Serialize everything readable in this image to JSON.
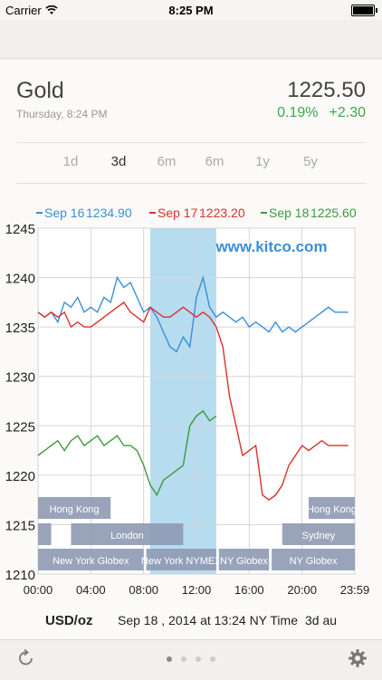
{
  "status_bar": {
    "carrier": "Carrier",
    "time": "8:25 PM"
  },
  "header": {
    "title": "Gold",
    "timestamp": "Thursday, 8:24 PM",
    "price": "1225.50",
    "change_pct": "0.19%",
    "change_abs": "+2.30"
  },
  "colors": {
    "positive": "#3aa64a",
    "sep16": "#3a8fd9",
    "sep17": "#d9312c",
    "sep18": "#3c9a3c",
    "highlight": "#9ed0ea"
  },
  "tabs": [
    {
      "label": "1d",
      "active": false
    },
    {
      "label": "3d",
      "active": true
    },
    {
      "label": "6m",
      "active": false
    },
    {
      "label": "6m",
      "active": false
    },
    {
      "label": "1y",
      "active": false
    },
    {
      "label": "5y",
      "active": false
    }
  ],
  "pager": {
    "pages": 4,
    "current": 0
  },
  "icons": {
    "refresh": "refresh-icon",
    "settings": "gear-icon"
  },
  "chart_data": {
    "type": "line",
    "watermark": "www.kitco.com",
    "legend": [
      {
        "name": "Sep 16",
        "value": "1234.90",
        "color": "#3a8fd9"
      },
      {
        "name": "Sep 17",
        "value": "1223.20",
        "color": "#d9312c"
      },
      {
        "name": "Sep 18",
        "value": "1225.60",
        "color": "#3c9a3c"
      }
    ],
    "ylim": [
      1210,
      1245
    ],
    "y_ticks": [
      "1245",
      "1240",
      "1235",
      "1230",
      "1225",
      "1220",
      "1215",
      "1210"
    ],
    "xlim": [
      0,
      24
    ],
    "x_ticks": [
      "00:00",
      "04:00",
      "08:00",
      "12:00",
      "16:00",
      "20:00",
      "23:59"
    ],
    "x_tick_hours": [
      0,
      4,
      8,
      12,
      16,
      20,
      24
    ],
    "highlight_hours": [
      8.5,
      13.5
    ],
    "footer": {
      "unit": "USD/oz",
      "timestamp": "Sep 18 , 2014 at 13:24 NY Time",
      "period": "3d au"
    },
    "sessions": [
      {
        "label": "Hong Kong",
        "start": 0,
        "end": 5.5,
        "row": 0
      },
      {
        "label": "Hong Kong",
        "start": 20.5,
        "end": 24,
        "row": 0
      },
      {
        "label": "",
        "start": 0,
        "end": 1,
        "row": 1
      },
      {
        "label": "London",
        "start": 2.5,
        "end": 11,
        "row": 1
      },
      {
        "label": "Sydney",
        "start": 18.5,
        "end": 24,
        "row": 1
      },
      {
        "label": "New York Globex",
        "start": 0,
        "end": 8,
        "row": 2
      },
      {
        "label": "New York NYMEX",
        "start": 8.2,
        "end": 13.5,
        "row": 2
      },
      {
        "label": "NY Globex",
        "start": 13.7,
        "end": 17.5,
        "row": 2
      },
      {
        "label": "NY Globex",
        "start": 17.7,
        "end": 24,
        "row": 2
      }
    ],
    "series": [
      {
        "name": "Sep 16",
        "color": "#3a8fd9",
        "x": [
          0,
          0.5,
          1,
          1.5,
          2,
          2.5,
          3,
          3.5,
          4,
          4.5,
          5,
          5.5,
          6,
          6.5,
          7,
          7.5,
          8,
          8.5,
          9,
          9.5,
          10,
          10.5,
          11,
          11.5,
          12,
          12.5,
          13,
          13.5,
          14,
          14.5,
          15,
          15.5,
          16,
          16.5,
          17,
          17.5,
          18,
          18.5,
          19,
          19.5,
          20,
          20.5,
          21,
          21.5,
          22,
          22.5,
          23,
          23.5
        ],
        "values": [
          1236.5,
          1236,
          1236.5,
          1235.5,
          1237.5,
          1237,
          1238,
          1236.5,
          1237,
          1236.5,
          1238,
          1237.5,
          1240,
          1239,
          1239.5,
          1238,
          1236.5,
          1237,
          1236,
          1234.5,
          1233,
          1232.5,
          1234,
          1233,
          1238,
          1240,
          1237,
          1236,
          1236.5,
          1236,
          1235.5,
          1236,
          1235,
          1235.5,
          1235,
          1234.5,
          1235.5,
          1234.5,
          1235,
          1234.5,
          1235,
          1235.5,
          1236,
          1236.5,
          1237,
          1236.5,
          1236.5,
          1236.5
        ]
      },
      {
        "name": "Sep 17",
        "color": "#d9312c",
        "x": [
          0,
          0.5,
          1,
          1.5,
          2,
          2.5,
          3,
          3.5,
          4,
          4.5,
          5,
          5.5,
          6,
          6.5,
          7,
          7.5,
          8,
          8.5,
          9,
          9.5,
          10,
          10.5,
          11,
          11.5,
          12,
          12.5,
          13,
          13.5,
          14,
          14.5,
          15,
          15.5,
          16,
          16.5,
          17,
          17.5,
          18,
          18.5,
          19,
          19.5,
          20,
          20.5,
          21,
          21.5,
          22,
          22.5,
          23,
          23.5
        ],
        "values": [
          1236.5,
          1236,
          1236.5,
          1236,
          1236.5,
          1235,
          1235.5,
          1235,
          1235,
          1235.5,
          1236,
          1236.5,
          1237,
          1237.5,
          1236.5,
          1236,
          1235.5,
          1237,
          1236.5,
          1236,
          1236,
          1236.5,
          1237,
          1236.5,
          1236,
          1236.5,
          1236,
          1235,
          1233,
          1228,
          1225,
          1222,
          1222.5,
          1223,
          1218,
          1217.5,
          1218,
          1219,
          1221,
          1222,
          1223,
          1222.5,
          1223,
          1223.5,
          1223,
          1223,
          1223,
          1223
        ]
      },
      {
        "name": "Sep 18",
        "color": "#3c9a3c",
        "x": [
          0,
          0.5,
          1,
          1.5,
          2,
          2.5,
          3,
          3.5,
          4,
          4.5,
          5,
          5.5,
          6,
          6.5,
          7,
          7.5,
          8,
          8.5,
          9,
          9.5,
          10,
          10.5,
          11,
          11.5,
          12,
          12.5,
          13,
          13.5
        ],
        "values": [
          1222,
          1222.5,
          1223,
          1223.5,
          1222.5,
          1223.5,
          1224,
          1223,
          1223.5,
          1224,
          1223,
          1223.5,
          1224,
          1223,
          1223,
          1222.5,
          1221,
          1219,
          1218,
          1219.5,
          1220,
          1220.5,
          1221,
          1225,
          1226,
          1226.5,
          1225.5,
          1226
        ]
      }
    ]
  }
}
